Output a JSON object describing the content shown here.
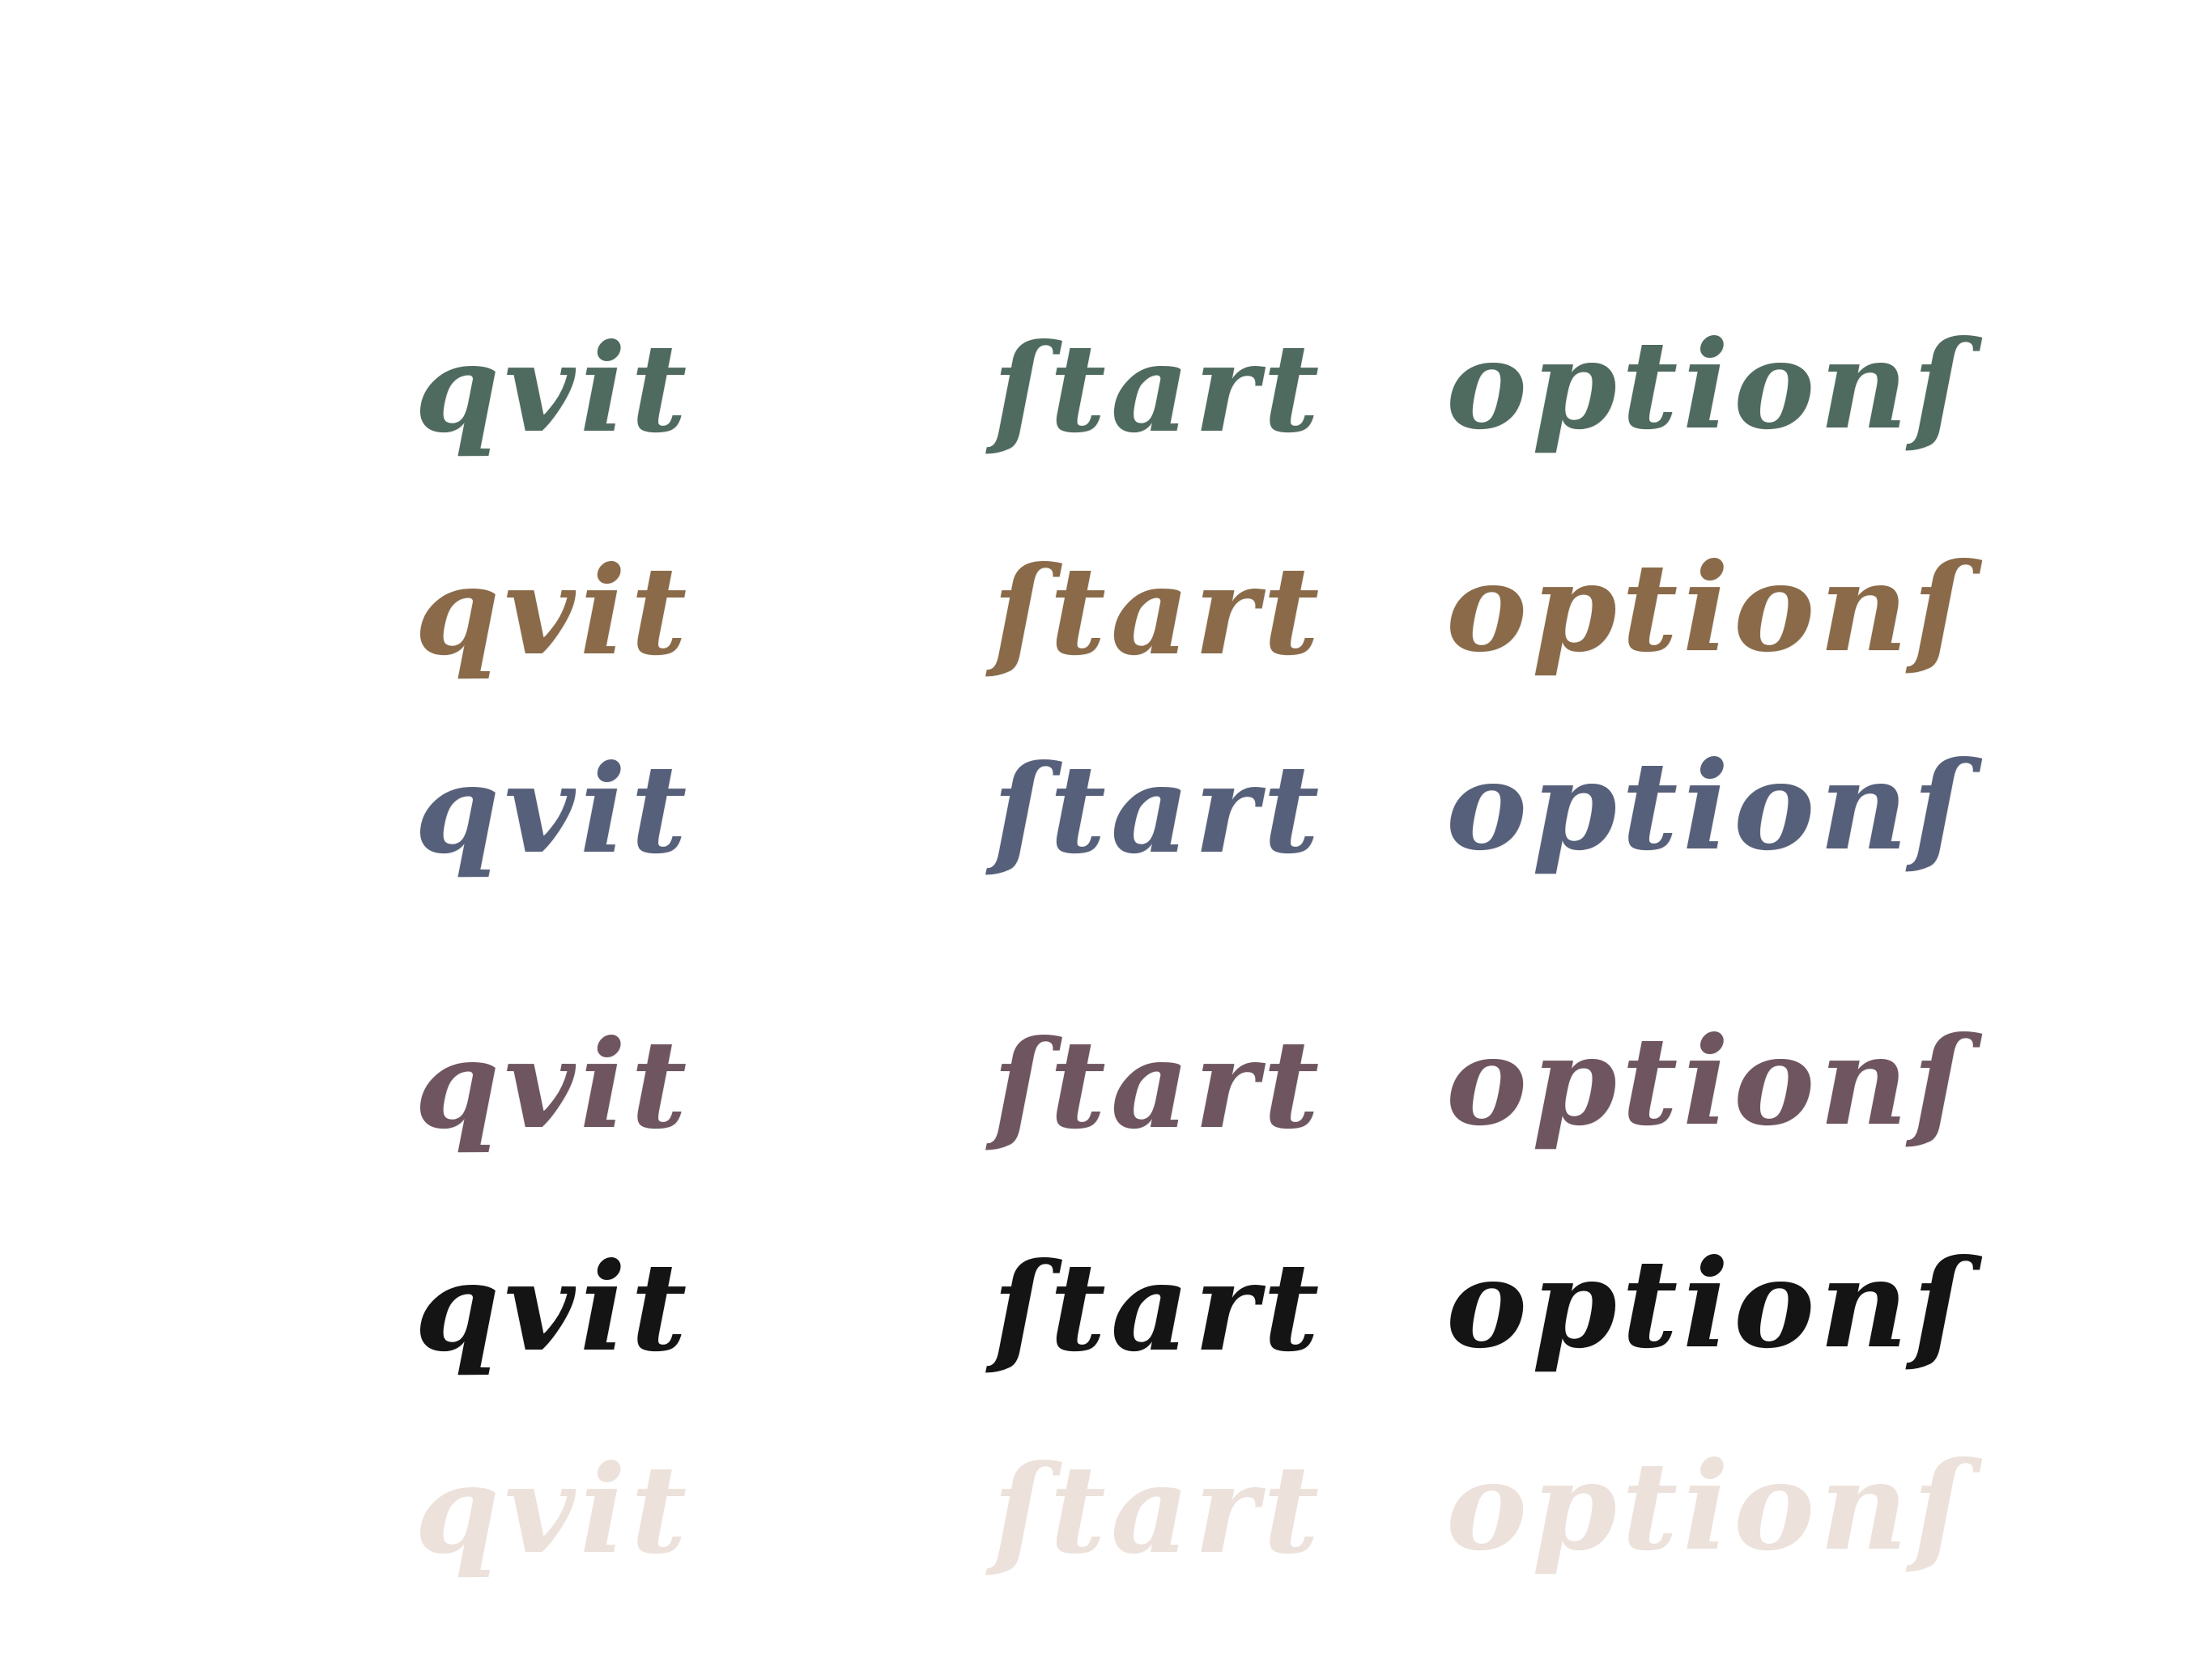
{
  "menu": {
    "rows": [
      {
        "style": "green",
        "color": "#4f6a5f",
        "opacity": 1,
        "quit": "qvit",
        "start": "ſtart",
        "options": "optionſ"
      },
      {
        "style": "brown",
        "color": "#8a6a48",
        "opacity": 1,
        "quit": "qvit",
        "start": "ſtart",
        "options": "optionſ"
      },
      {
        "style": "slate",
        "color": "#56607a",
        "opacity": 1,
        "quit": "qvit",
        "start": "ſtart",
        "options": "optionſ"
      },
      {
        "style": "mauve",
        "color": "#6e5560",
        "opacity": 1,
        "quit": "qvit",
        "start": "ſtart",
        "options": "optionſ"
      },
      {
        "style": "black",
        "color": "#141414",
        "opacity": 1,
        "quit": "qvit",
        "start": "ſtart",
        "options": "optionſ"
      },
      {
        "style": "faded",
        "color": "#eadfd8",
        "opacity": 0.9,
        "quit": "qvit",
        "start": "ſtart",
        "options": "optionſ"
      }
    ]
  }
}
